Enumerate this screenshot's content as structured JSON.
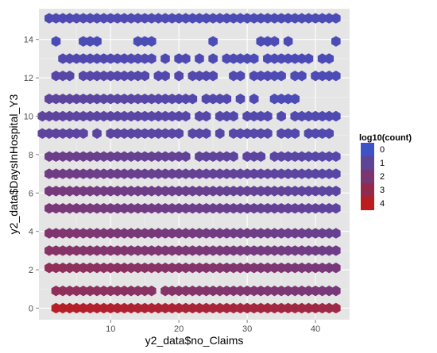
{
  "chart_data": {
    "type": "hexbin",
    "title": "",
    "xlabel": "y2_data$no_Claims",
    "ylabel": "y2_data$DaysInHospital_Y3",
    "xlim": [
      -0.5,
      45
    ],
    "ylim": [
      -0.6,
      15.6
    ],
    "x_ticks": [
      10,
      20,
      30,
      40
    ],
    "y_ticks": [
      0,
      2,
      4,
      6,
      8,
      10,
      12,
      14
    ],
    "grid": true,
    "legend": {
      "title": "log10(count)",
      "placement": "right",
      "labels": [
        "0",
        "1",
        "2",
        "3",
        "4"
      ],
      "colors": [
        "#3f51c8",
        "#5e4497",
        "#7a3672",
        "#932a4d",
        "#bd1c1e"
      ]
    },
    "colors": {
      "low": "#3f51c8",
      "high": "#bd1c1e"
    },
    "hex_rows": [
      {
        "y": 0,
        "x_start": 2,
        "x_end": 43,
        "level_start": 3.8,
        "level_end": 3.0
      },
      {
        "y": 0.9,
        "x_start": 2,
        "x_end": 43,
        "level_start": 2.6,
        "level_end": 1.8,
        "missing": [
          17
        ]
      },
      {
        "y": 2.1,
        "x_start": 1,
        "x_end": 43,
        "level_start": 2.6,
        "level_end": 1.8
      },
      {
        "y": 3.0,
        "x_start": 1,
        "x_end": 43,
        "level_start": 2.3,
        "level_end": 1.5
      },
      {
        "y": 3.9,
        "x_start": 1,
        "x_end": 43,
        "level_start": 2.1,
        "level_end": 1.3
      },
      {
        "y": 5.2,
        "x_start": 1,
        "x_end": 43,
        "level_start": 1.9,
        "level_end": 1.0
      },
      {
        "y": 6.1,
        "x_start": 1,
        "x_end": 43,
        "level_start": 1.8,
        "level_end": 0.9
      },
      {
        "y": 7.0,
        "x_start": 1,
        "x_end": 43,
        "level_start": 1.6,
        "level_end": 0.8
      },
      {
        "y": 7.9,
        "x_start": 1,
        "x_end": 43,
        "level_start": 1.5,
        "level_end": 0.7,
        "missing": [
          22,
          29,
          33
        ]
      },
      {
        "y": 9.1,
        "x_start": 0,
        "x_end": 42,
        "level_start": 1.0,
        "level_end": 0.6,
        "missing": [
          7,
          9,
          21,
          25,
          27,
          34,
          38
        ]
      },
      {
        "y": 10.0,
        "x_start": 0,
        "x_end": 43,
        "level_start": 1.0,
        "level_end": 0.5,
        "missing": [
          22,
          25,
          29,
          34,
          36
        ]
      },
      {
        "y": 10.9,
        "x_start": 1,
        "x_end": 37,
        "level_start": 1.0,
        "level_end": 0.4,
        "missing": [
          23,
          28,
          30,
          32,
          33
        ]
      },
      {
        "y": 12.1,
        "x_start": 2,
        "x_end": 43,
        "level_start": 0.8,
        "level_end": 0.4,
        "missing": [
          5,
          16,
          19,
          21,
          26,
          27,
          30,
          36,
          39
        ]
      },
      {
        "y": 13.0,
        "x_start": 3,
        "x_end": 42,
        "level_start": 0.6,
        "level_end": 0.4,
        "missing": [
          17,
          19,
          22,
          24,
          26,
          32,
          40
        ]
      },
      {
        "y": 13.9,
        "x_start": 2,
        "x_end": 43,
        "level_start": 0.4,
        "level_end": 0.4,
        "missing": [
          3,
          4,
          5,
          9,
          10,
          11,
          12,
          13,
          17,
          18,
          19,
          20,
          21,
          22,
          23,
          24,
          26,
          27,
          28,
          29,
          30,
          31,
          35,
          37,
          38,
          39,
          40,
          41,
          42
        ]
      },
      {
        "y": 15.1,
        "x_start": 1,
        "x_end": 43,
        "level_start": 0.5,
        "level_end": 0.4
      }
    ]
  }
}
